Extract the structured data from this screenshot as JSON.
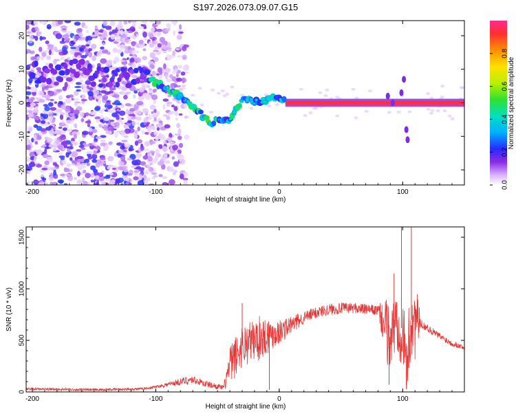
{
  "title": "S197.2026.073.09.07.G15",
  "colors": {
    "snr_line": "#e53535",
    "spectral_peak": "#d0103a",
    "background": "#ffffff"
  },
  "chart_data": [
    {
      "type": "heatmap",
      "xlabel": "Height of straight line (km)",
      "ylabel": "Frequency (Hz)",
      "xlim": [
        -205,
        150
      ],
      "ylim": [
        -24.5,
        24.5
      ],
      "x_ticks": [
        "-200",
        "-100",
        "0",
        "100"
      ],
      "y_ticks": [
        "-20",
        "-10",
        "0",
        "10",
        "20"
      ],
      "colorbar": {
        "label": "Normalized spectral amplitude",
        "range": [
          0.0,
          1.0
        ],
        "ticks": [
          "0.0",
          "0.2",
          "0.4",
          "0.6",
          "0.8"
        ]
      },
      "peak_frequency_track": [
        {
          "x": -200,
          "y": 9
        },
        {
          "x": -180,
          "y": 8
        },
        {
          "x": -160,
          "y": 10
        },
        {
          "x": -140,
          "y": 7
        },
        {
          "x": -120,
          "y": 8
        },
        {
          "x": -108,
          "y": 8
        },
        {
          "x": -100,
          "y": 6
        },
        {
          "x": -90,
          "y": 4
        },
        {
          "x": -80,
          "y": 2
        },
        {
          "x": -70,
          "y": -1
        },
        {
          "x": -62,
          "y": -4
        },
        {
          "x": -55,
          "y": -6
        },
        {
          "x": -48,
          "y": -5
        },
        {
          "x": -40,
          "y": -5
        },
        {
          "x": -35,
          "y": -2
        },
        {
          "x": -28,
          "y": 1
        },
        {
          "x": -20,
          "y": 0.5
        },
        {
          "x": -10,
          "y": 1
        },
        {
          "x": 0,
          "y": 1.5
        },
        {
          "x": 10,
          "y": 0
        },
        {
          "x": 150,
          "y": 0
        }
      ]
    },
    {
      "type": "line",
      "xlabel": "Height of straight line (km)",
      "ylabel": "SNR (10 * v/v)",
      "xlim": [
        -205,
        150
      ],
      "ylim": [
        0,
        1600
      ],
      "x_ticks": [
        "-200",
        "-100",
        "0",
        "100"
      ],
      "y_ticks": [
        "0",
        "500",
        "1000",
        "1500"
      ],
      "series": [
        {
          "envelope_points": [
            {
              "x": -205,
              "y": 30
            },
            {
              "x": -150,
              "y": 20
            },
            {
              "x": -110,
              "y": 30
            },
            {
              "x": -95,
              "y": 60
            },
            {
              "x": -80,
              "y": 100
            },
            {
              "x": -70,
              "y": 120
            },
            {
              "x": -60,
              "y": 80
            },
            {
              "x": -45,
              "y": 40
            },
            {
              "x": -40,
              "y": 250
            },
            {
              "x": -30,
              "y": 450
            },
            {
              "x": -20,
              "y": 500
            },
            {
              "x": -10,
              "y": 550
            },
            {
              "x": 0,
              "y": 580
            },
            {
              "x": 10,
              "y": 650
            },
            {
              "x": 20,
              "y": 720
            },
            {
              "x": 30,
              "y": 770
            },
            {
              "x": 40,
              "y": 800
            },
            {
              "x": 50,
              "y": 810
            },
            {
              "x": 60,
              "y": 815
            },
            {
              "x": 70,
              "y": 800
            },
            {
              "x": 80,
              "y": 790
            },
            {
              "x": 85,
              "y": 650
            },
            {
              "x": 90,
              "y": 500
            },
            {
              "x": 95,
              "y": 700
            },
            {
              "x": 100,
              "y": 600
            },
            {
              "x": 103,
              "y": 200
            },
            {
              "x": 107,
              "y": 700
            },
            {
              "x": 110,
              "y": 700
            },
            {
              "x": 120,
              "y": 620
            },
            {
              "x": 130,
              "y": 540
            },
            {
              "x": 140,
              "y": 470
            },
            {
              "x": 150,
              "y": 430
            }
          ],
          "noise_amplitude": [
            {
              "x": -205,
              "y": 12
            },
            {
              "x": -100,
              "y": 12
            },
            {
              "x": -75,
              "y": 40
            },
            {
              "x": -45,
              "y": 25
            },
            {
              "x": -40,
              "y": 200
            },
            {
              "x": -15,
              "y": 220
            },
            {
              "x": 0,
              "y": 120
            },
            {
              "x": 20,
              "y": 60
            },
            {
              "x": 80,
              "y": 50
            },
            {
              "x": 86,
              "y": 300
            },
            {
              "x": 110,
              "y": 400
            },
            {
              "x": 115,
              "y": 40
            },
            {
              "x": 150,
              "y": 25
            }
          ],
          "spikes": [
            {
              "x": -30,
              "y": 860
            },
            {
              "x": -13,
              "y": 660
            },
            {
              "x": -8,
              "y": 20
            },
            {
              "x": 89,
              "y": 70
            },
            {
              "x": 93,
              "y": 1150
            },
            {
              "x": 99,
              "y": 1600
            },
            {
              "x": 103,
              "y": 60
            },
            {
              "x": 107,
              "y": 1600
            }
          ]
        }
      ]
    }
  ]
}
